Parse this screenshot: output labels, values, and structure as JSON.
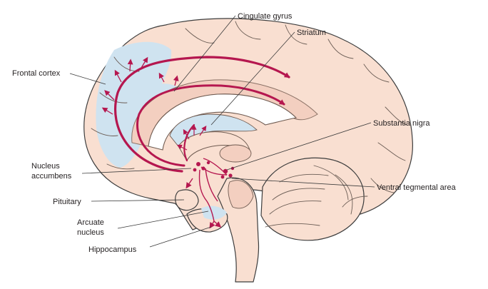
{
  "figure": {
    "labels": {
      "frontal_cortex": "Frontal cortex",
      "cingulate_gyrus": "Cingulate gyrus",
      "striatum": "Striatum",
      "substantia_nigra": "Substantia nigra",
      "nucleus_accumbens_line1": "Nucleus",
      "nucleus_accumbens_line2": "accumbens",
      "ventral_tegmental_area": "Ventral tegmental area",
      "pituitary": "Pituitary",
      "arcuate_nucleus_line1": "Arcuate",
      "arcuate_nucleus_line2": "nucleus",
      "hippocampus": "Hippocampus"
    },
    "colors": {
      "brain_fill": "#f9dfd1",
      "target_region": "#cfe3f0",
      "pathway": "#b5174f",
      "outline": "#3d3d3d"
    }
  }
}
